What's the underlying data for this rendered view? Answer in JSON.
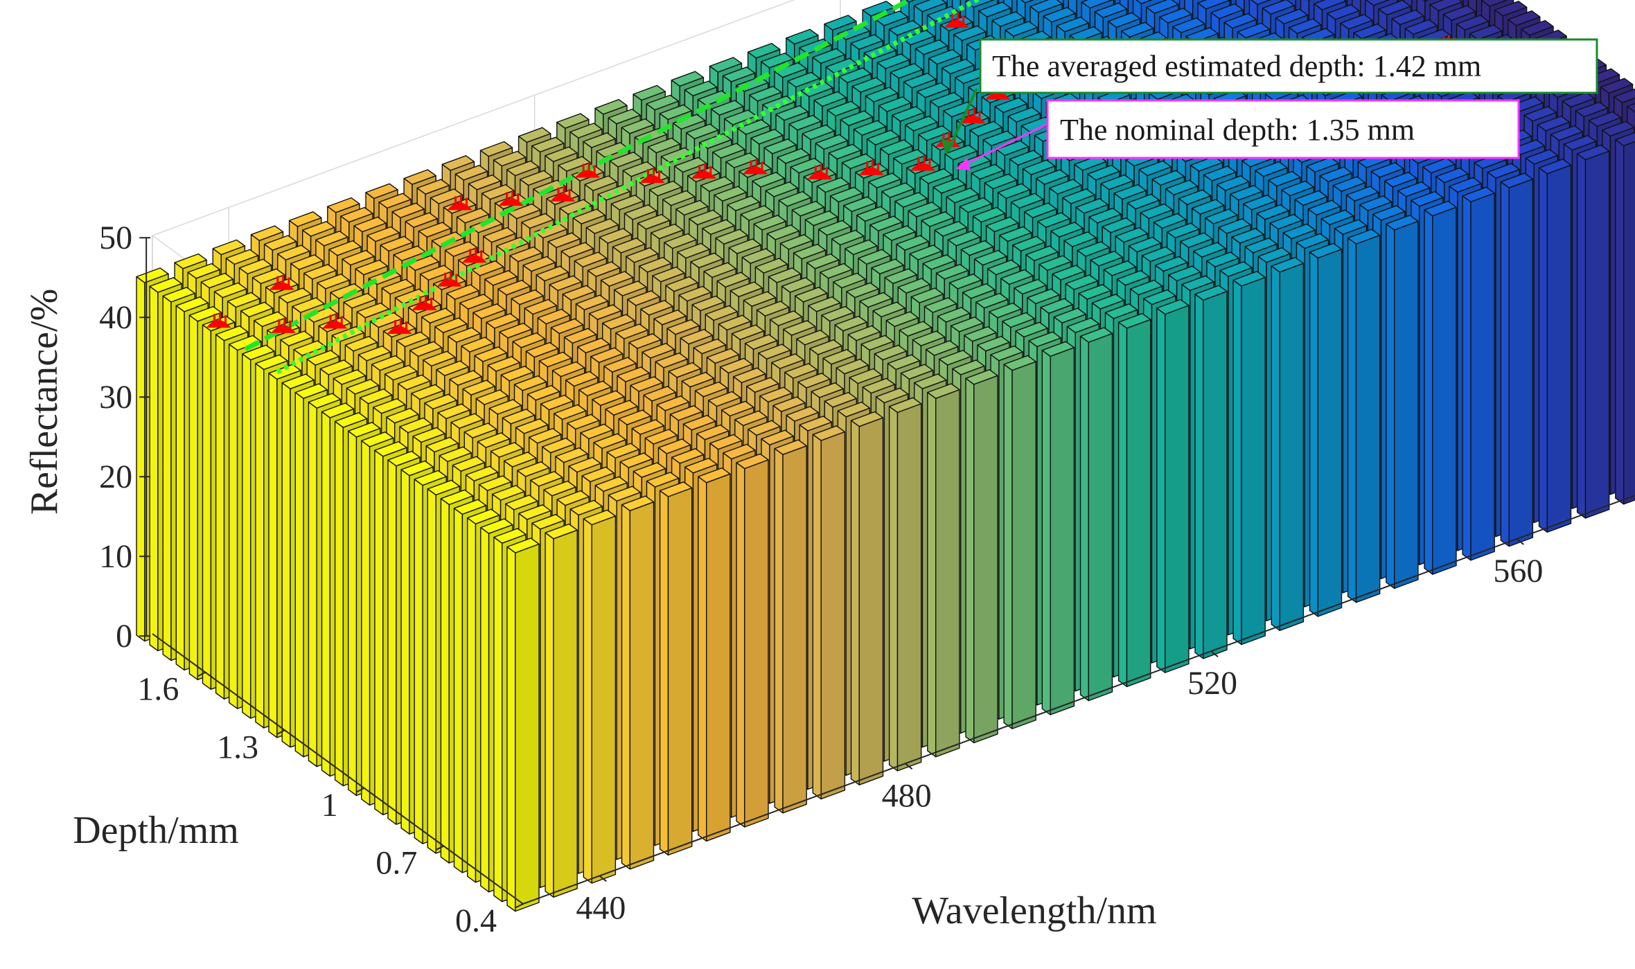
{
  "chart_data": {
    "type": "bar3d",
    "title": "",
    "xlabel": "Wavelength/nm",
    "ylabel": "Depth/mm",
    "zlabel": "Reflectance/%",
    "zlim": [
      0,
      50
    ],
    "z_ticks": [
      "0",
      "10",
      "20",
      "30",
      "40",
      "50"
    ],
    "wavelength_ticks": [
      "440",
      "480",
      "520",
      "560"
    ],
    "depth_ticks": [
      "0.4",
      "0.7",
      "1",
      "1.3",
      "1.6"
    ],
    "wavelength_range_nm": [
      430,
      580
    ],
    "wavelength_step_nm": 5,
    "depth_range_mm": [
      0.4,
      1.8
    ],
    "depth_step_mm": 0.05,
    "reflectance_by_wavelength": [
      {
        "wavelength": 430,
        "reflectance": 45
      },
      {
        "wavelength": 480,
        "reflectance": 45
      },
      {
        "wavelength": 530,
        "reflectance": 45
      },
      {
        "wavelength": 580,
        "reflectance": 45
      }
    ],
    "estimated_depth_markers": [
      {
        "wavelength": 430,
        "depth": 1.55
      },
      {
        "wavelength": 435,
        "depth": 1.45
      },
      {
        "wavelength": 440,
        "depth": 1.4
      },
      {
        "wavelength": 440,
        "depth": 1.6
      },
      {
        "wavelength": 445,
        "depth": 1.3
      },
      {
        "wavelength": 450,
        "depth": 1.35
      },
      {
        "wavelength": 455,
        "depth": 1.4
      },
      {
        "wavelength": 460,
        "depth": 1.45
      },
      {
        "wavelength": 465,
        "depth": 1.65
      },
      {
        "wavelength": 470,
        "depth": 1.6
      },
      {
        "wavelength": 475,
        "depth": 1.55
      },
      {
        "wavelength": 480,
        "depth": 1.6
      },
      {
        "wavelength": 485,
        "depth": 1.5
      },
      {
        "wavelength": 490,
        "depth": 1.45
      },
      {
        "wavelength": 495,
        "depth": 1.4
      },
      {
        "wavelength": 500,
        "depth": 1.3
      },
      {
        "wavelength": 505,
        "depth": 1.25
      },
      {
        "wavelength": 510,
        "depth": 1.2
      },
      {
        "wavelength": 515,
        "depth": 1.25
      },
      {
        "wavelength": 520,
        "depth": 1.3
      },
      {
        "wavelength": 525,
        "depth": 1.35
      },
      {
        "wavelength": 530,
        "depth": 1.65
      },
      {
        "wavelength": 570,
        "depth": 0.95
      }
    ],
    "averaged_estimated_depth_mm": 1.42,
    "nominal_depth_mm": 1.35,
    "annotations": [
      {
        "text": "The averaged estimated depth: 1.42 mm",
        "color": "#1a8a2a",
        "line_style": "dashed"
      },
      {
        "text": "The nominal depth: 1.35 mm",
        "color": "#ff33ff",
        "line_style": "dotted"
      }
    ]
  },
  "colors": {
    "colormap": [
      "#f9fb0e",
      "#fcd035",
      "#fbb83c",
      "#e0b955",
      "#a8be6a",
      "#5ec27c",
      "#1dbb99",
      "#0ea7b8",
      "#0a8bd4",
      "#1565e6",
      "#2742c4",
      "#352a87"
    ],
    "marker": "#ff0000",
    "avg_line": "#22e52b",
    "nominal_line": "#33ff33",
    "avg_box_border": "#1a8a2a",
    "nominal_box_border": "#ff33ff"
  }
}
